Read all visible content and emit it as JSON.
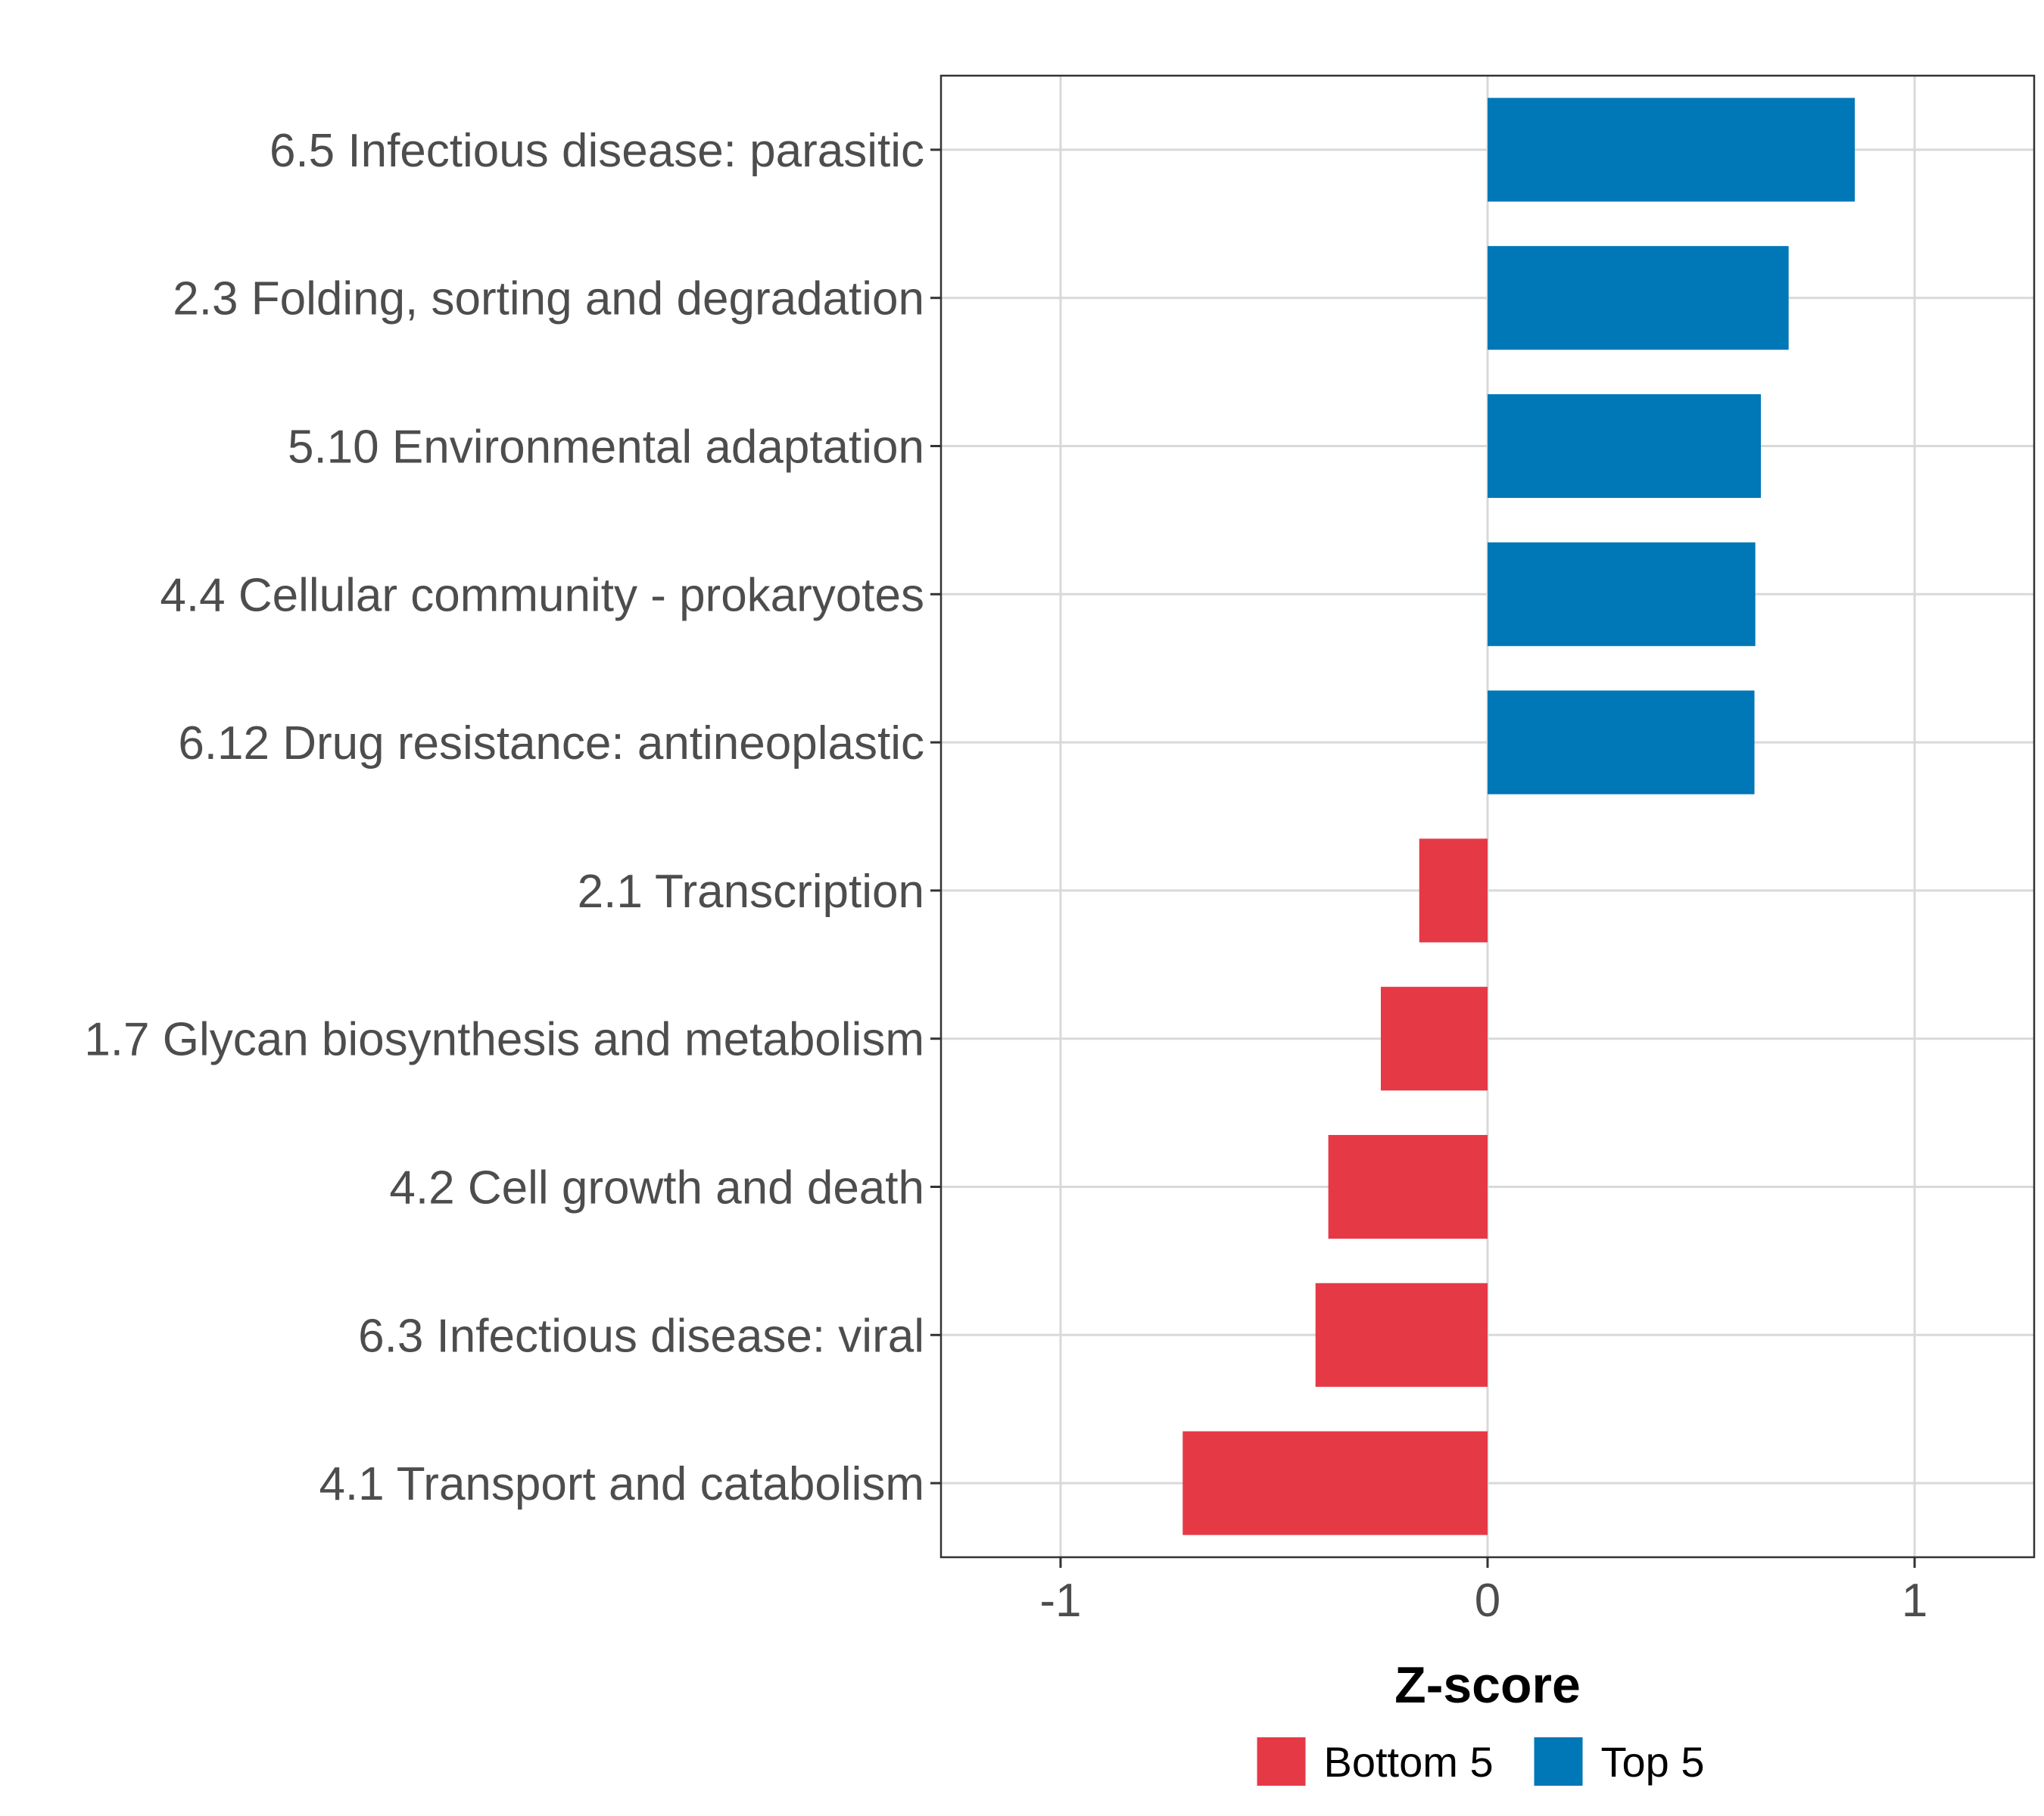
{
  "chart_data": {
    "type": "bar",
    "orientation": "horizontal",
    "categories": [
      "6.5 Infectious disease: parasitic",
      "2.3 Folding, sorting and degradation",
      "5.10 Environmental adaptation",
      "4.4 Cellular community - prokaryotes",
      "6.12 Drug resistance: antineoplastic",
      "2.1 Transcription",
      "1.7 Glycan biosynthesis and metabolism",
      "4.2 Cell growth and death",
      "6.3 Infectious disease: viral",
      "4.1 Transport and catabolism"
    ],
    "values": [
      0.86,
      0.705,
      0.64,
      0.627,
      0.625,
      -0.16,
      -0.25,
      -0.373,
      -0.403,
      -0.714
    ],
    "groups": [
      "Top 5",
      "Top 5",
      "Top 5",
      "Top 5",
      "Top 5",
      "Bottom 5",
      "Bottom 5",
      "Bottom 5",
      "Bottom 5",
      "Bottom 5"
    ],
    "xlabel": "Z-score",
    "ylabel": "",
    "xlim": [
      -1.28,
      1.28
    ],
    "x_ticks": [
      -1,
      0,
      1
    ],
    "x_tick_labels": [
      "-1",
      "0",
      "1"
    ],
    "grid": true,
    "legend": {
      "position": "bottom",
      "items": [
        {
          "label": "Bottom 5",
          "color": "#E63946"
        },
        {
          "label": "Top 5",
          "color": "#0077B6"
        }
      ]
    },
    "colors": {
      "Bottom 5": "#E63946",
      "Top 5": "#0077B6"
    }
  }
}
